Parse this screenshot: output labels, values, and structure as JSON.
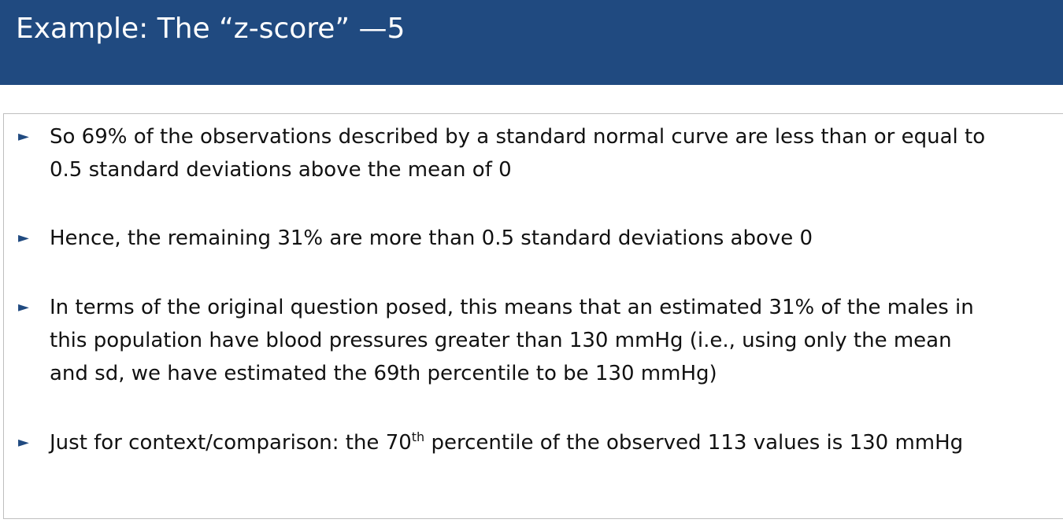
{
  "slide": {
    "title": "Example: The “z-score” —5"
  },
  "bullets": [
    {
      "lines": [
        "So 69% of the observations described by a standard normal curve are less than or equal to",
        "0.5 standard deviations above the mean of 0"
      ]
    },
    {
      "lines": [
        "Hence, the remaining 31% are more than 0.5 standard deviations above 0"
      ]
    },
    {
      "lines": [
        "In terms of the original question posed, this means that an estimated 31% of the males in",
        "this population have blood pressures greater than 130 mmHg (i.e., using only the mean",
        "and sd, we have estimated the 69th percentile to be 130 mmHg)"
      ]
    },
    {
      "text_before": "Just for context/comparison: the 70",
      "superscript": "th",
      "text_after": " percentile of the observed 113 values is 130 mmHg"
    }
  ],
  "bullet_marker": "►",
  "colors": {
    "title_bar": "#204a80",
    "title_text": "#ffffff",
    "body_text": "#111111",
    "bullet_marker": "#204a80"
  }
}
